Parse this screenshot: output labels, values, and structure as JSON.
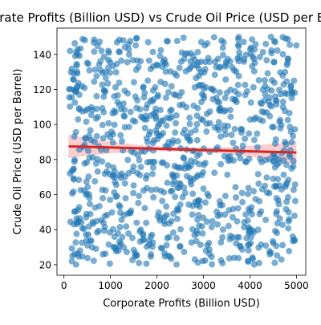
{
  "chart_data": {
    "type": "scatter",
    "title": "Corporate Profits (Billion USD) vs Crude Oil Price (USD per Barrel)",
    "xlabel": "Corporate Profits (Billion USD)",
    "ylabel": "Crude Oil Price (USD per Barrel)",
    "xlim": [
      -150,
      5200
    ],
    "ylim": [
      14,
      155
    ],
    "xticks": [
      0,
      1000,
      2000,
      3000,
      4000,
      5000
    ],
    "yticks": [
      20,
      40,
      60,
      80,
      100,
      120,
      140
    ],
    "grid": false,
    "legend": "none",
    "point_count_approx": 1000,
    "point_distribution": {
      "x_range": [
        100,
        5000
      ],
      "y_range": [
        20,
        150
      ]
    },
    "trend_line": {
      "x": [
        100,
        5000
      ],
      "y": [
        87.5,
        84.0
      ]
    },
    "colors": {
      "points": "#1f77b4",
      "trend_line": "#d62728",
      "confidence_band": "#f4a6a8"
    }
  }
}
